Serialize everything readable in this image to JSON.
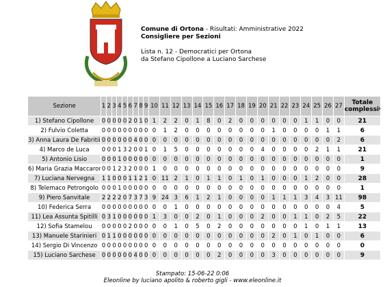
{
  "header": {
    "title": "Comune di Ortona",
    "subtitle": " - Risultati: Amministrative 2022",
    "heading": "Consigliere per Sezioni",
    "list": "Lista n. 12 - Democratici per Ortona",
    "range": "da Stefano Cipollone a Luciano Sarchese"
  },
  "table": {
    "columns": [
      "Sezione",
      "1",
      "2",
      "3",
      "4",
      "5",
      "6",
      "7",
      "8",
      "9",
      "10",
      "11",
      "12",
      "13",
      "14",
      "15",
      "16",
      "17",
      "18",
      "19",
      "20",
      "21",
      "22",
      "23",
      "24",
      "25",
      "26",
      "27",
      "Totale complessivo"
    ],
    "rows": [
      {
        "name": "1) Stefano Cipollone",
        "values": [
          0,
          0,
          0,
          0,
          0,
          2,
          0,
          1,
          0,
          1,
          2,
          2,
          0,
          1,
          8,
          0,
          2,
          0,
          0,
          0,
          0,
          0,
          0,
          1,
          1,
          0,
          0
        ],
        "total": 21
      },
      {
        "name": "2) Fulvio Coletta",
        "values": [
          0,
          0,
          0,
          0,
          0,
          0,
          0,
          0,
          0,
          0,
          1,
          2,
          0,
          0,
          0,
          0,
          0,
          0,
          0,
          0,
          1,
          0,
          0,
          0,
          0,
          1,
          1
        ],
        "total": 6
      },
      {
        "name": "3) Anna Laura De Fabritiis",
        "values": [
          0,
          0,
          0,
          0,
          0,
          0,
          4,
          0,
          0,
          0,
          0,
          0,
          0,
          0,
          0,
          0,
          0,
          0,
          0,
          0,
          0,
          0,
          0,
          0,
          0,
          0,
          2
        ],
        "total": 6
      },
      {
        "name": "4) Marco de Luca",
        "values": [
          0,
          0,
          0,
          1,
          3,
          2,
          0,
          0,
          1,
          0,
          1,
          5,
          0,
          0,
          0,
          0,
          0,
          0,
          0,
          4,
          0,
          0,
          0,
          0,
          2,
          1,
          1
        ],
        "total": 21
      },
      {
        "name": "5) Antonio Lisio",
        "values": [
          0,
          0,
          0,
          1,
          0,
          0,
          0,
          0,
          0,
          0,
          0,
          0,
          0,
          0,
          0,
          0,
          0,
          0,
          0,
          0,
          0,
          0,
          0,
          0,
          0,
          0,
          0
        ],
        "total": 1
      },
      {
        "name": "6) Maria Grazia Maccarone",
        "values": [
          0,
          0,
          1,
          2,
          3,
          2,
          0,
          0,
          0,
          1,
          0,
          0,
          0,
          0,
          0,
          0,
          0,
          0,
          0,
          0,
          0,
          0,
          0,
          0,
          0,
          0,
          0
        ],
        "total": 9
      },
      {
        "name": "7) Luciana Nervegna",
        "values": [
          1,
          1,
          0,
          0,
          0,
          1,
          1,
          2,
          1,
          0,
          11,
          2,
          1,
          0,
          1,
          1,
          0,
          1,
          0,
          1,
          0,
          0,
          0,
          1,
          2,
          0,
          0
        ],
        "total": 28
      },
      {
        "name": "8) Telemaco Petrongolo",
        "values": [
          0,
          0,
          0,
          1,
          0,
          0,
          0,
          0,
          0,
          0,
          0,
          0,
          0,
          0,
          0,
          0,
          0,
          0,
          0,
          0,
          0,
          0,
          0,
          0,
          0,
          0,
          0
        ],
        "total": 1
      },
      {
        "name": "9) Piero Sanvitale",
        "values": [
          2,
          2,
          2,
          2,
          0,
          7,
          3,
          7,
          3,
          9,
          24,
          3,
          6,
          1,
          2,
          1,
          0,
          0,
          0,
          0,
          1,
          1,
          1,
          3,
          4,
          3,
          11
        ],
        "total": 98
      },
      {
        "name": "10) Federica Serra",
        "values": [
          0,
          0,
          0,
          0,
          0,
          0,
          0,
          0,
          0,
          0,
          0,
          1,
          0,
          0,
          0,
          0,
          0,
          0,
          0,
          0,
          0,
          0,
          0,
          0,
          0,
          0,
          4
        ],
        "total": 5
      },
      {
        "name": "11) Lea Assunta Spitilli",
        "values": [
          0,
          3,
          1,
          0,
          0,
          0,
          0,
          0,
          0,
          1,
          3,
          0,
          0,
          2,
          0,
          1,
          0,
          0,
          0,
          2,
          0,
          0,
          1,
          1,
          0,
          2,
          5
        ],
        "total": 22
      },
      {
        "name": "12) Sofia Stamelou",
        "values": [
          0,
          0,
          0,
          0,
          0,
          2,
          0,
          0,
          0,
          0,
          0,
          1,
          0,
          5,
          0,
          2,
          0,
          0,
          0,
          0,
          0,
          0,
          0,
          1,
          0,
          1,
          1
        ],
        "total": 13
      },
      {
        "name": "13) Manuele Starinieri",
        "values": [
          0,
          1,
          1,
          0,
          0,
          0,
          0,
          0,
          0,
          0,
          0,
          0,
          0,
          0,
          0,
          0,
          0,
          0,
          0,
          0,
          2,
          0,
          1,
          0,
          1,
          0,
          0
        ],
        "total": 6
      },
      {
        "name": "14) Sergio Di Vincenzo",
        "values": [
          0,
          0,
          0,
          0,
          0,
          0,
          0,
          0,
          0,
          0,
          0,
          0,
          0,
          0,
          0,
          0,
          0,
          0,
          0,
          0,
          0,
          0,
          0,
          0,
          0,
          0,
          0
        ],
        "total": 0
      },
      {
        "name": "15) Luciano Sarchese",
        "values": [
          0,
          0,
          0,
          0,
          0,
          0,
          4,
          0,
          0,
          0,
          0,
          0,
          0,
          0,
          0,
          2,
          0,
          0,
          0,
          0,
          3,
          0,
          0,
          0,
          0,
          0,
          0
        ],
        "total": 9
      }
    ]
  },
  "footer": {
    "printed": "Stampato: 15-06-22 0:06",
    "credits": "Eleonline by luciano apolito & roberto gigli - www.eleonline.it"
  }
}
